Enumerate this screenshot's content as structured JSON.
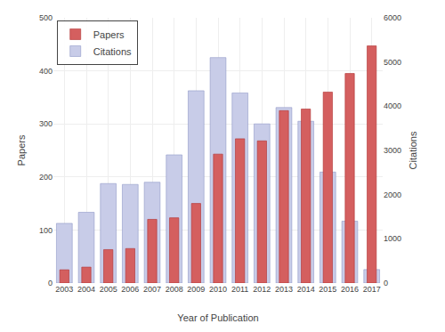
{
  "chart_data": {
    "type": "bar",
    "categories": [
      "2003",
      "2004",
      "2005",
      "2006",
      "2007",
      "2008",
      "2009",
      "2010",
      "2011",
      "2012",
      "2013",
      "2014",
      "2015",
      "2016",
      "2017"
    ],
    "xlabel": "Year of Publication",
    "ylabel": "Papers",
    "y2label": "Citations",
    "series": [
      {
        "name": "Papers",
        "color": "#d45f5f",
        "values": [
          25,
          30,
          63,
          65,
          120,
          123,
          150,
          243,
          272,
          268,
          325,
          328,
          360,
          395,
          447
        ]
      },
      {
        "name": "Citations",
        "color": "#c8cce8",
        "axis": "y2",
        "values": [
          1350,
          1600,
          2250,
          2230,
          2280,
          2900,
          4350,
          5100,
          4300,
          3600,
          3970,
          3660,
          2510,
          1400,
          305
        ]
      }
    ],
    "ylim": [
      0,
      500
    ],
    "yticks": [
      0,
      100,
      200,
      300,
      400,
      500
    ],
    "y2lim": [
      0,
      6000
    ],
    "y2ticks": [
      0,
      1000,
      2000,
      3000,
      4000,
      5000,
      6000
    ],
    "grid": true,
    "legend": "upper left"
  }
}
